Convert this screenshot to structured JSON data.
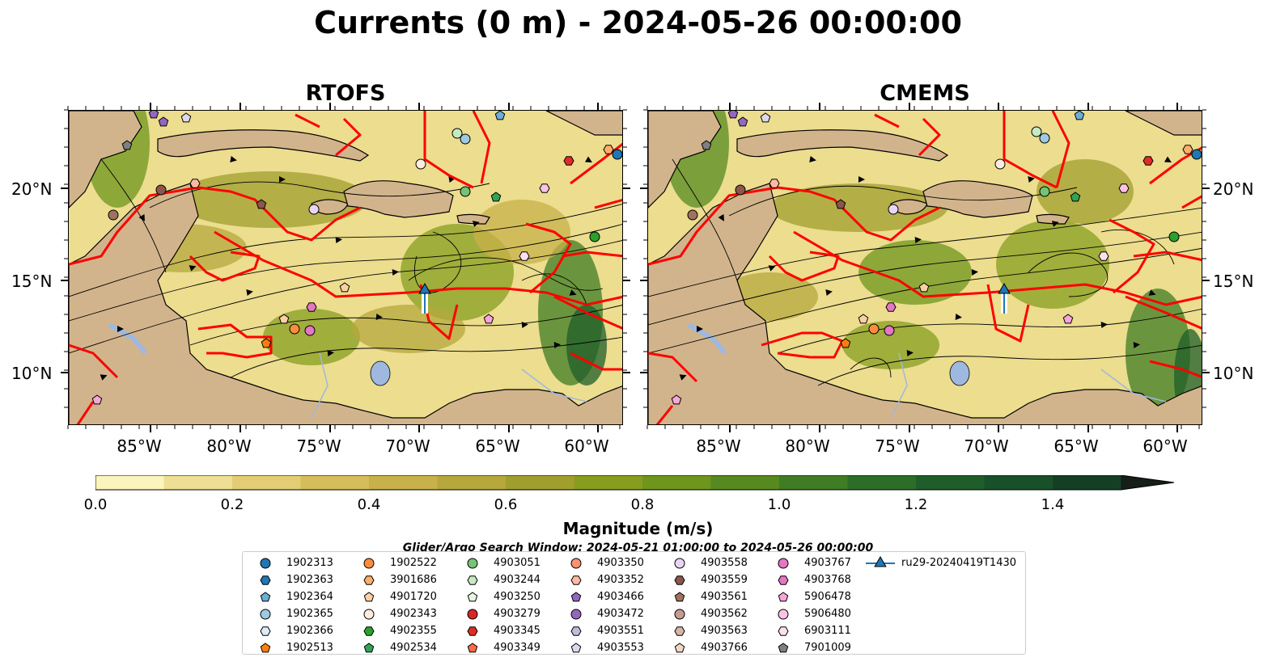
{
  "title": "Currents (0 m) - 2024-05-26 00:00:00",
  "panels": [
    {
      "title": "RTOFS"
    },
    {
      "title": "CMEMS"
    }
  ],
  "latitude_labels": [
    "20°N",
    "15°N",
    "10°N"
  ],
  "longitude_labels": [
    "85°W",
    "80°W",
    "75°W",
    "70°W",
    "65°W",
    "60°W"
  ],
  "colorbar": {
    "label": "Magnitude (m/s)",
    "ticks": [
      "0.0",
      "0.2",
      "0.4",
      "0.6",
      "0.8",
      "1.0",
      "1.2",
      "1.4"
    ],
    "min": 0.0,
    "max": 1.5,
    "extend": "max",
    "colors": [
      "#fbf5bd",
      "#efdf94",
      "#e2cd74",
      "#d6bd5b",
      "#c8b04a",
      "#b6a73c",
      "#a09e2d",
      "#879d1f",
      "#6e951c",
      "#56891f",
      "#3f7c23",
      "#2c6e27",
      "#1f5e2a",
      "#18502a",
      "#153f25",
      "#142e1f",
      "#151e17"
    ]
  },
  "search_window": "Glider/Argo Search Window: 2024-05-21 01:00:00 to 2024-05-26 00:00:00",
  "legend": [
    {
      "label": "1902313",
      "marker": "circle",
      "color": "#1f77b4"
    },
    {
      "label": "1902363",
      "marker": "hexagon",
      "color": "#1f77b4"
    },
    {
      "label": "1902364",
      "marker": "pentagon",
      "color": "#6baed6"
    },
    {
      "label": "1902365",
      "marker": "circle",
      "color": "#9ecae1"
    },
    {
      "label": "1902366",
      "marker": "hexagon",
      "color": "#deebf7"
    },
    {
      "label": "1902513",
      "marker": "pentagon",
      "color": "#ff7f0e"
    },
    {
      "label": "1902522",
      "marker": "circle",
      "color": "#fd8d3c"
    },
    {
      "label": "3901686",
      "marker": "hexagon",
      "color": "#fdae6b"
    },
    {
      "label": "4901720",
      "marker": "pentagon",
      "color": "#fdd0a2"
    },
    {
      "label": "4902343",
      "marker": "circle",
      "color": "#feedde"
    },
    {
      "label": "4902355",
      "marker": "hexagon",
      "color": "#2ca02c"
    },
    {
      "label": "4902534",
      "marker": "pentagon",
      "color": "#31a354"
    },
    {
      "label": "4903051",
      "marker": "circle",
      "color": "#74c476"
    },
    {
      "label": "4903244",
      "marker": "hexagon",
      "color": "#c7e9c0"
    },
    {
      "label": "4903250",
      "marker": "pentagon",
      "color": "#e5f5e0"
    },
    {
      "label": "4903279",
      "marker": "circle",
      "color": "#d62728"
    },
    {
      "label": "4903345",
      "marker": "hexagon",
      "color": "#de2d26"
    },
    {
      "label": "4903349",
      "marker": "pentagon",
      "color": "#fb6a4a"
    },
    {
      "label": "4903350",
      "marker": "circle",
      "color": "#fc9272"
    },
    {
      "label": "4903352",
      "marker": "hexagon",
      "color": "#fcbba1"
    },
    {
      "label": "4903466",
      "marker": "pentagon",
      "color": "#9467bd"
    },
    {
      "label": "4903472",
      "marker": "circle",
      "color": "#9467bd"
    },
    {
      "label": "4903551",
      "marker": "hexagon",
      "color": "#bcbddc"
    },
    {
      "label": "4903553",
      "marker": "pentagon",
      "color": "#dadaeb"
    },
    {
      "label": "4903558",
      "marker": "circle",
      "color": "#e8d5f5"
    },
    {
      "label": "4903559",
      "marker": "hexagon",
      "color": "#8c564b"
    },
    {
      "label": "4903561",
      "marker": "pentagon",
      "color": "#a0725f"
    },
    {
      "label": "4903562",
      "marker": "circle",
      "color": "#c49c94"
    },
    {
      "label": "4903563",
      "marker": "hexagon",
      "color": "#d9b3a7"
    },
    {
      "label": "4903766",
      "marker": "pentagon",
      "color": "#f3d5c8"
    },
    {
      "label": "4903767",
      "marker": "circle",
      "color": "#e377c2"
    },
    {
      "label": "4903768",
      "marker": "hexagon",
      "color": "#e377c2"
    },
    {
      "label": "5906478",
      "marker": "pentagon",
      "color": "#f7a6d8"
    },
    {
      "label": "5906480",
      "marker": "circle",
      "color": "#fbc2e6"
    },
    {
      "label": "6903111",
      "marker": "hexagon",
      "color": "#fde0ef"
    },
    {
      "label": "7901009",
      "marker": "pentagon",
      "color": "#7f7f7f"
    },
    {
      "label": "ru29-20240419T1430",
      "marker": "triangle-line",
      "color": "#1f77b4"
    }
  ]
}
